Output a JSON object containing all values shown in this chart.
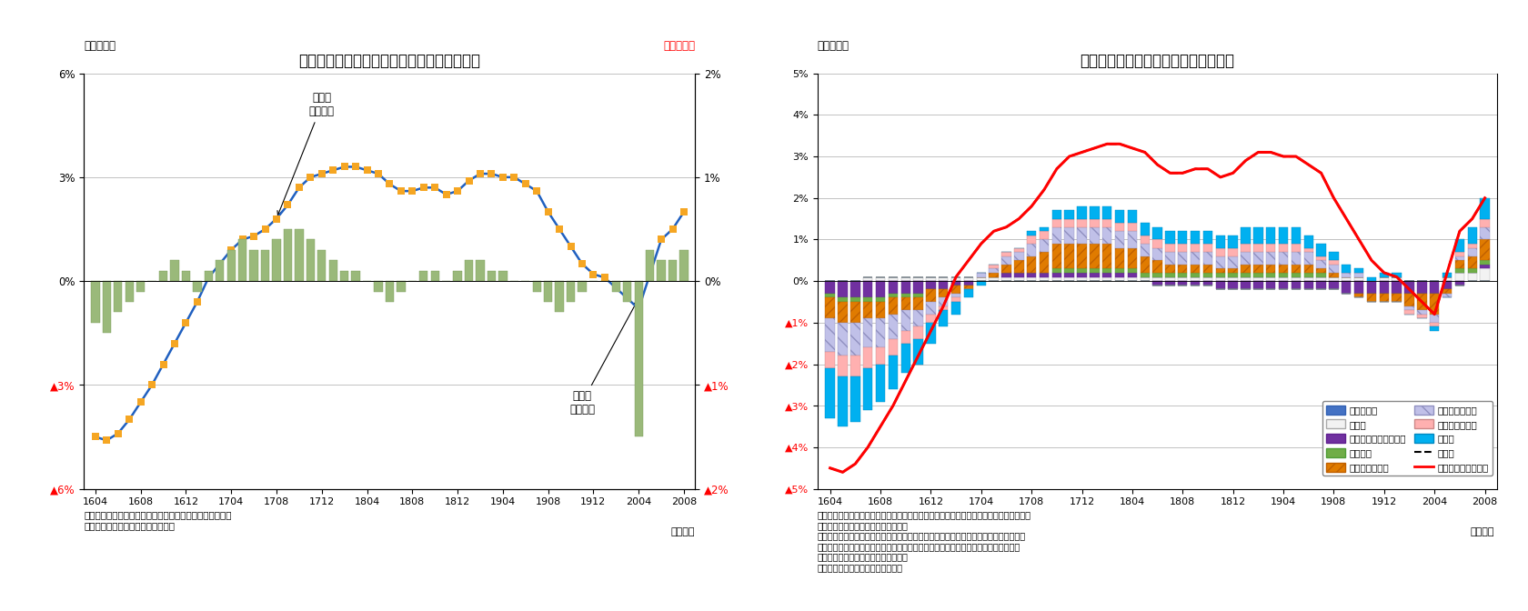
{
  "title1": "国内企業物価指数（前年比・前月比）の推移",
  "title2": "国内企業物価指数の前年比寄与度分解",
  "ylabel1_left": "（前年比）",
  "ylabel1_right": "（前月比）",
  "ylabel2": "（前年比）",
  "note1": "（注）消費税を除くベース。前月比は夏季電力料金調整後\n（資料）日本銀行「企業物価指数」",
  "note2_line1": "（注）機械類：はん用機器、生産用機器、業務用機器、電子部品・デバイス、電気機器、",
  "note2_line2": "　　　　　情報通信機器、輸送用機器",
  "note2_line3": "　　鉄鋼・建材関連：鉄鋼、金属製品、窯業・土石製品、木材・木製品、スクラップ類",
  "note2_line4": "　　素材（その他）：化学製品、プラスチック製品、繊維製品、パルプ・紙・同製品",
  "note2_line5": "　　その他：その他工業製品、鉱産物",
  "note2_line6": "（資料）日本銀行「企業物価指数」",
  "x_labels": [
    "1604",
    "1608",
    "1612",
    "1704",
    "1708",
    "1712",
    "1804",
    "1808",
    "1812",
    "1904",
    "1908",
    "1912",
    "2004",
    "2008"
  ],
  "x_ticks_pos": [
    0,
    4,
    8,
    12,
    16,
    20,
    24,
    28,
    32,
    36,
    40,
    44,
    48,
    52
  ],
  "n_points": 53,
  "yoy": [
    -4.5,
    -4.6,
    -4.4,
    -4.0,
    -3.5,
    -3.0,
    -2.4,
    -1.8,
    -1.2,
    -0.6,
    0.1,
    0.5,
    0.9,
    1.2,
    1.3,
    1.5,
    1.8,
    2.2,
    2.7,
    3.0,
    3.1,
    3.2,
    3.3,
    3.3,
    3.2,
    3.1,
    2.8,
    2.6,
    2.6,
    2.7,
    2.7,
    2.5,
    2.6,
    2.9,
    3.1,
    3.1,
    3.0,
    3.0,
    2.8,
    2.6,
    2.0,
    1.5,
    1.0,
    0.5,
    0.2,
    0.1,
    -0.2,
    -0.5,
    -0.8,
    0.2,
    1.2,
    1.5,
    2.0
  ],
  "mom": [
    -0.4,
    -0.5,
    -0.3,
    -0.2,
    -0.1,
    0.0,
    0.1,
    0.2,
    0.1,
    -0.1,
    0.1,
    0.2,
    0.3,
    0.4,
    0.3,
    0.3,
    0.4,
    0.5,
    0.5,
    0.4,
    0.3,
    0.2,
    0.1,
    0.1,
    0.0,
    -0.1,
    -0.2,
    -0.1,
    0.0,
    0.1,
    0.1,
    0.0,
    0.1,
    0.2,
    0.2,
    0.1,
    0.1,
    0.0,
    0.0,
    -0.1,
    -0.2,
    -0.3,
    -0.2,
    -0.1,
    0.0,
    0.0,
    -0.1,
    -0.2,
    -1.5,
    0.3,
    0.2,
    0.2,
    0.3
  ],
  "bar_color": "#9ab97a",
  "line_color_yoy": "#2060c0",
  "marker_color_yoy": "#f5a623",
  "yoy_contrib": {
    "消費増税分": [
      0,
      0,
      0,
      0,
      0,
      0,
      0,
      0,
      0,
      0,
      0,
      0,
      0,
      0,
      0,
      0,
      0,
      0,
      0,
      0,
      0,
      0,
      0,
      0,
      0,
      0,
      0,
      0,
      0,
      0,
      0,
      0,
      0,
      0,
      0,
      0,
      0,
      0,
      0,
      0,
      0,
      0,
      0,
      0,
      0,
      0,
      0,
      0,
      0,
      0,
      0,
      0,
      0
    ],
    "その他": [
      0.0,
      0.0,
      0.0,
      0.1,
      0.1,
      0.1,
      0.1,
      0.1,
      0.1,
      0.1,
      0.1,
      0.1,
      0.1,
      0.1,
      0.1,
      0.1,
      0.1,
      0.1,
      0.1,
      0.1,
      0.1,
      0.1,
      0.1,
      0.1,
      0.1,
      0.1,
      0.1,
      0.1,
      0.1,
      0.1,
      0.1,
      0.1,
      0.1,
      0.1,
      0.1,
      0.1,
      0.1,
      0.1,
      0.1,
      0.1,
      0.1,
      0.1,
      0.1,
      0.0,
      0.1,
      0.1,
      0.0,
      0.0,
      0.0,
      0.1,
      0.2,
      0.2,
      0.3
    ],
    "電力・都市ガス・水道": [
      -0.3,
      -0.4,
      -0.4,
      -0.4,
      -0.4,
      -0.3,
      -0.3,
      -0.3,
      -0.2,
      -0.2,
      -0.1,
      -0.1,
      0.0,
      0.0,
      0.1,
      0.1,
      0.1,
      0.1,
      0.1,
      0.1,
      0.1,
      0.1,
      0.1,
      0.1,
      0.1,
      0.0,
      -0.1,
      -0.1,
      -0.1,
      -0.1,
      -0.1,
      -0.2,
      -0.2,
      -0.2,
      -0.2,
      -0.2,
      -0.2,
      -0.2,
      -0.2,
      -0.2,
      -0.2,
      -0.3,
      -0.3,
      -0.3,
      -0.3,
      -0.3,
      -0.3,
      -0.3,
      -0.3,
      -0.2,
      -0.1,
      0.0,
      0.1
    ],
    "非鉄金属": [
      -0.1,
      -0.1,
      -0.1,
      -0.1,
      -0.1,
      -0.1,
      -0.1,
      -0.1,
      0.0,
      0.0,
      0.0,
      0.0,
      0.0,
      0.0,
      0.0,
      0.0,
      0.0,
      0.0,
      0.1,
      0.1,
      0.1,
      0.1,
      0.1,
      0.1,
      0.1,
      0.1,
      0.1,
      0.1,
      0.1,
      0.1,
      0.1,
      0.1,
      0.1,
      0.1,
      0.1,
      0.1,
      0.1,
      0.1,
      0.1,
      0.1,
      0.0,
      0.0,
      0.0,
      0.0,
      0.0,
      0.0,
      0.0,
      0.0,
      0.0,
      0.0,
      0.1,
      0.1,
      0.1
    ],
    "石油・石炭製品": [
      -0.5,
      -0.5,
      -0.5,
      -0.4,
      -0.4,
      -0.4,
      -0.3,
      -0.3,
      -0.3,
      -0.2,
      -0.2,
      -0.1,
      0.0,
      0.1,
      0.2,
      0.3,
      0.4,
      0.5,
      0.6,
      0.6,
      0.6,
      0.6,
      0.6,
      0.5,
      0.5,
      0.4,
      0.3,
      0.2,
      0.2,
      0.2,
      0.2,
      0.1,
      0.1,
      0.2,
      0.2,
      0.2,
      0.2,
      0.2,
      0.2,
      0.1,
      0.1,
      0.0,
      -0.1,
      -0.2,
      -0.2,
      -0.2,
      -0.3,
      -0.4,
      -0.5,
      -0.1,
      0.2,
      0.3,
      0.5
    ],
    "素材（その他）": [
      -0.8,
      -0.8,
      -0.8,
      -0.7,
      -0.7,
      -0.6,
      -0.5,
      -0.4,
      -0.3,
      -0.2,
      -0.1,
      0.0,
      0.1,
      0.1,
      0.2,
      0.2,
      0.3,
      0.3,
      0.4,
      0.4,
      0.4,
      0.4,
      0.4,
      0.4,
      0.4,
      0.3,
      0.3,
      0.3,
      0.3,
      0.3,
      0.3,
      0.3,
      0.3,
      0.3,
      0.3,
      0.3,
      0.3,
      0.3,
      0.3,
      0.2,
      0.2,
      0.1,
      0.1,
      0.0,
      0.0,
      0.0,
      -0.1,
      -0.1,
      -0.2,
      -0.1,
      0.1,
      0.2,
      0.3
    ],
    "鉄鋼・建材関連": [
      -0.4,
      -0.5,
      -0.5,
      -0.5,
      -0.4,
      -0.4,
      -0.3,
      -0.3,
      -0.2,
      -0.1,
      -0.1,
      0.0,
      0.0,
      0.1,
      0.1,
      0.1,
      0.2,
      0.2,
      0.2,
      0.2,
      0.2,
      0.2,
      0.2,
      0.2,
      0.2,
      0.2,
      0.2,
      0.2,
      0.2,
      0.2,
      0.2,
      0.2,
      0.2,
      0.2,
      0.2,
      0.2,
      0.2,
      0.2,
      0.1,
      0.1,
      0.1,
      0.0,
      0.0,
      0.0,
      0.0,
      0.0,
      -0.1,
      -0.1,
      -0.1,
      0.0,
      0.1,
      0.1,
      0.2
    ],
    "機械類": [
      -1.2,
      -1.2,
      -1.1,
      -1.0,
      -0.9,
      -0.8,
      -0.7,
      -0.6,
      -0.5,
      -0.4,
      -0.3,
      -0.2,
      -0.1,
      0.0,
      0.0,
      0.0,
      0.1,
      0.1,
      0.2,
      0.2,
      0.3,
      0.3,
      0.3,
      0.3,
      0.3,
      0.3,
      0.3,
      0.3,
      0.3,
      0.3,
      0.3,
      0.3,
      0.3,
      0.4,
      0.4,
      0.4,
      0.4,
      0.4,
      0.3,
      0.3,
      0.2,
      0.2,
      0.1,
      0.1,
      0.1,
      0.1,
      0.0,
      0.0,
      -0.1,
      0.1,
      0.3,
      0.4,
      0.5
    ]
  },
  "total_line": [
    -4.5,
    -4.6,
    -4.4,
    -4.0,
    -3.5,
    -3.0,
    -2.4,
    -1.8,
    -1.2,
    -0.6,
    0.1,
    0.5,
    0.9,
    1.2,
    1.3,
    1.5,
    1.8,
    2.2,
    2.7,
    3.0,
    3.1,
    3.2,
    3.3,
    3.3,
    3.2,
    3.1,
    2.8,
    2.6,
    2.6,
    2.7,
    2.7,
    2.5,
    2.6,
    2.9,
    3.1,
    3.1,
    3.0,
    3.0,
    2.8,
    2.6,
    2.0,
    1.5,
    1.0,
    0.5,
    0.2,
    0.1,
    -0.2,
    -0.5,
    -0.8,
    0.2,
    1.2,
    1.5,
    2.0
  ],
  "excl_tax_line": [
    -4.5,
    -4.6,
    -4.4,
    -4.0,
    -3.5,
    -3.0,
    -2.4,
    -1.8,
    -1.2,
    -0.6,
    0.1,
    0.5,
    0.9,
    1.2,
    1.3,
    1.5,
    1.8,
    2.2,
    2.7,
    3.0,
    3.1,
    3.2,
    3.3,
    3.3,
    3.2,
    3.1,
    2.8,
    2.6,
    2.6,
    2.7,
    2.7,
    2.5,
    2.6,
    2.9,
    3.1,
    3.1,
    3.0,
    3.0,
    2.8,
    2.6,
    2.0,
    1.5,
    1.0,
    0.5,
    0.2,
    0.1,
    -0.2,
    -0.5,
    -0.8,
    0.2,
    1.2,
    1.5,
    2.0
  ],
  "bg_color": "#ffffff"
}
